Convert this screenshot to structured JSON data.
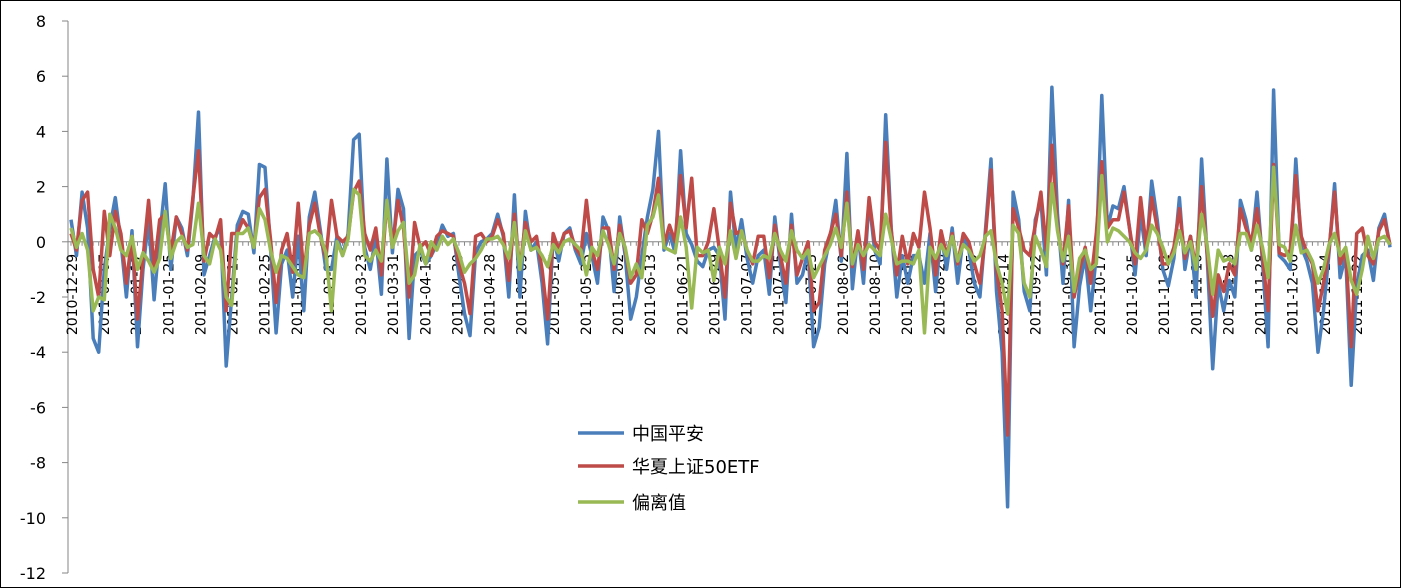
{
  "chart_data": {
    "type": "line",
    "ylim": [
      -12,
      8
    ],
    "yticks": [
      8,
      6,
      4,
      2,
      0,
      -2,
      -4,
      -6,
      -8,
      -10,
      -12
    ],
    "xtick_labels": [
      "2010-12-29",
      "2011-01-07",
      "2011-01-17",
      "2011-01-25",
      "2011-02-09",
      "2011-02-17",
      "2011-02-25",
      "2011-03-07",
      "2011-03-15",
      "2011-03-23",
      "2011-03-31",
      "2011-04-12",
      "2011-04-20",
      "2011-04-28",
      "2011-05-09",
      "2011-05-17",
      "2011-05-25",
      "2011-06-02",
      "2011-06-13",
      "2011-06-21",
      "2011-06-29",
      "2011-07-07",
      "2011-07-15",
      "2011-07-25",
      "2011-08-02",
      "2011-08-10",
      "2011-08-18",
      "2011-08-26",
      "2011-09-05",
      "2011-09-14",
      "2011-09-22",
      "2011-09-30",
      "2011-10-17",
      "2011-10-25",
      "2011-11-02",
      "2011-11-10",
      "2011-11-18",
      "2011-11-28",
      "2011-12-06",
      "2011-12-14",
      "2011-12-22"
    ],
    "legend_position": "center-bottom",
    "grid": false,
    "series": [
      {
        "name": "中国平安",
        "color": "#4a7ebb",
        "values": [
          0.8,
          -0.5,
          1.8,
          0.5,
          -3.5,
          -4.0,
          -1.0,
          0.5,
          1.6,
          0.0,
          -2.0,
          0.4,
          -3.8,
          -1.0,
          0.8,
          -2.1,
          0.2,
          2.1,
          -1.0,
          0.9,
          0.5,
          -0.5,
          1.5,
          4.7,
          -1.2,
          -0.5,
          0.2,
          0.5,
          -4.5,
          -2.0,
          0.6,
          1.1,
          1.0,
          -0.4,
          2.8,
          2.7,
          -0.2,
          -3.3,
          -0.8,
          -0.3,
          -2.0,
          0.2,
          -2.5,
          0.9,
          1.8,
          0.4,
          -1.0,
          -1.0,
          0.2,
          -0.5,
          0.3,
          3.7,
          3.9,
          -0.2,
          -1.0,
          0.2,
          -1.9,
          3.0,
          -0.4,
          1.9,
          1.2,
          -3.5,
          -0.5,
          -0.3,
          -0.8,
          -0.5,
          -0.1,
          0.6,
          0.2,
          0.3,
          -1.2,
          -2.6,
          -3.4,
          -0.4,
          0.0,
          0.1,
          0.3,
          1.0,
          0.2,
          -2.0,
          1.7,
          -2.0,
          1.1,
          -0.3,
          0.0,
          -1.5,
          -3.7,
          0.2,
          -0.7,
          0.3,
          0.5,
          -0.3,
          -0.8,
          0.3,
          -0.5,
          -1.5,
          0.9,
          0.4,
          -1.8,
          0.9,
          -0.5,
          -2.8,
          -2.0,
          -0.5,
          0.9,
          1.9,
          4.0,
          -0.3,
          0.3,
          -0.4,
          3.3,
          0.3,
          -0.1,
          -0.7,
          -0.9,
          -0.3,
          -0.2,
          -0.5,
          -2.8,
          1.8,
          -0.3,
          0.8,
          -0.6,
          -1.5,
          -0.5,
          -0.3,
          -1.9,
          0.9,
          -0.8,
          -2.2,
          1.0,
          -1.5,
          -1.2,
          -0.3,
          -3.8,
          -3.1,
          -0.8,
          0.2,
          1.5,
          -0.7,
          3.2,
          -1.7,
          0.3,
          -1.5,
          1.5,
          -0.3,
          -0.8,
          4.6,
          0.5,
          -2.0,
          -0.5,
          -1.5,
          -0.5,
          -0.5,
          -1.5,
          0.3,
          -1.8,
          0.3,
          -1.0,
          0.5,
          -1.5,
          0.2,
          -0.3,
          -1.5,
          -2.0,
          0.4,
          3.0,
          -1.8,
          -4.0,
          -9.6,
          1.8,
          0.8,
          -1.8,
          -2.5,
          0.8,
          1.5,
          -1.2,
          5.6,
          1.0,
          -1.5,
          1.5,
          -3.8,
          -1.6,
          -0.5,
          -2.5,
          -0.5,
          5.3,
          0.5,
          1.3,
          1.2,
          2.0,
          0.5,
          -1.2,
          1.0,
          -0.5,
          2.2,
          0.8,
          -1.0,
          -1.6,
          -0.6,
          1.6,
          -1.0,
          0.2,
          -2.0,
          3.0,
          -0.5,
          -4.6,
          -1.5,
          -2.5,
          -1.4,
          -2.0,
          1.5,
          0.8,
          -0.3,
          1.8,
          -0.7,
          -3.8,
          5.5,
          -0.5,
          -0.7,
          -1.0,
          3.0,
          -0.2,
          -0.7,
          -1.5,
          -4.0,
          -2.5,
          -0.4,
          2.1,
          -1.3,
          -0.5,
          -5.2,
          -1.6,
          -0.5,
          -0.3,
          -1.4,
          0.5,
          1.0,
          -0.2
        ]
      },
      {
        "name": "华夏上证50ETF",
        "color": "#be4b48",
        "values": [
          0.3,
          -0.3,
          1.5,
          1.8,
          -1.0,
          -2.0,
          1.1,
          -0.5,
          1.1,
          0.3,
          -1.5,
          0.2,
          -2.8,
          -0.6,
          1.5,
          -1.0,
          0.8,
          1.0,
          -0.4,
          0.9,
          0.3,
          -0.3,
          1.6,
          3.3,
          -0.7,
          0.3,
          0.1,
          0.8,
          -2.5,
          0.3,
          0.3,
          0.8,
          0.5,
          -0.2,
          1.6,
          1.9,
          0.1,
          -2.2,
          -0.3,
          0.3,
          -1.1,
          1.4,
          -1.2,
          0.6,
          1.4,
          0.2,
          -0.6,
          1.5,
          0.2,
          0.0,
          0.2,
          1.8,
          2.2,
          0.3,
          -0.3,
          0.5,
          -1.2,
          1.5,
          -0.2,
          1.5,
          0.5,
          -2.0,
          0.7,
          -0.2,
          0.0,
          -0.5,
          0.2,
          0.4,
          0.3,
          0.2,
          -0.8,
          -1.5,
          -2.6,
          0.2,
          0.3,
          0.0,
          0.2,
          0.8,
          0.3,
          -1.4,
          1.0,
          -1.0,
          0.7,
          0.0,
          0.2,
          -1.0,
          -2.8,
          0.3,
          -0.3,
          0.3,
          0.4,
          -0.2,
          -0.5,
          1.5,
          -0.3,
          -1.0,
          0.5,
          0.5,
          -1.0,
          0.6,
          -0.3,
          -1.5,
          -1.2,
          0.8,
          0.3,
          1.0,
          2.3,
          -0.1,
          0.6,
          0.0,
          2.4,
          0.5,
          2.3,
          -0.5,
          -0.5,
          0.0,
          1.2,
          -0.3,
          -2.0,
          1.4,
          0.3,
          0.4,
          -0.3,
          -0.8,
          0.2,
          0.2,
          -1.3,
          0.6,
          -0.5,
          -1.5,
          0.6,
          -1.2,
          -0.6,
          0.0,
          -2.5,
          -2.2,
          -0.3,
          0.3,
          1.0,
          -0.5,
          1.8,
          -0.9,
          0.4,
          -1.0,
          1.6,
          0.0,
          -0.3,
          3.6,
          0.4,
          -1.2,
          0.2,
          -0.8,
          0.3,
          -0.2,
          1.8,
          0.5,
          -1.2,
          0.4,
          -0.5,
          0.3,
          -0.8,
          0.3,
          0.0,
          -0.8,
          -1.5,
          0.2,
          2.6,
          -1.0,
          -2.5,
          -7.0,
          1.2,
          0.5,
          -0.3,
          -0.5,
          0.6,
          1.8,
          -0.3,
          3.5,
          0.6,
          -0.8,
          1.3,
          -2.0,
          -1.0,
          -0.2,
          -1.5,
          0.3,
          2.9,
          0.5,
          0.8,
          0.8,
          1.8,
          0.5,
          -0.8,
          1.6,
          -0.2,
          1.6,
          0.5,
          -0.8,
          -0.8,
          -0.2,
          1.2,
          -0.6,
          0.2,
          -1.0,
          2.0,
          -0.4,
          -2.7,
          -1.2,
          -1.8,
          -0.8,
          -1.2,
          1.2,
          0.5,
          0.0,
          1.2,
          -0.5,
          -2.5,
          2.8,
          -0.4,
          -0.5,
          -0.3,
          2.4,
          0.2,
          -0.4,
          -0.8,
          -2.5,
          -1.5,
          -0.3,
          1.8,
          -0.8,
          -0.3,
          -3.8,
          0.3,
          0.5,
          -0.5,
          -0.8,
          0.4,
          0.8,
          -0.1
        ]
      },
      {
        "name": "偏离值",
        "color": "#98b954",
        "values": [
          0.5,
          -0.2,
          0.3,
          -0.3,
          -2.5,
          -2.0,
          -2.1,
          1.0,
          0.5,
          -0.3,
          -0.5,
          0.2,
          -1.0,
          -0.4,
          -0.7,
          -1.1,
          -0.6,
          1.1,
          -0.6,
          0.0,
          0.2,
          -0.2,
          -0.1,
          1.4,
          -0.5,
          -0.8,
          0.1,
          -0.3,
          -2.0,
          -2.3,
          0.3,
          0.3,
          0.5,
          -0.2,
          1.2,
          0.8,
          -0.3,
          -1.1,
          -0.5,
          -0.6,
          -0.9,
          -1.2,
          -1.3,
          0.3,
          0.4,
          0.2,
          -0.4,
          -2.5,
          0.0,
          -0.5,
          0.1,
          1.9,
          1.7,
          -0.5,
          -0.7,
          -0.3,
          -0.7,
          1.5,
          -0.2,
          0.4,
          0.7,
          -1.5,
          -1.2,
          -0.1,
          -0.8,
          0.0,
          -0.3,
          0.2,
          -0.1,
          0.1,
          -0.4,
          -1.1,
          -0.8,
          -0.6,
          -0.3,
          0.1,
          0.1,
          0.2,
          -0.1,
          -0.6,
          0.7,
          -1.0,
          0.4,
          -0.3,
          -0.2,
          -0.5,
          -0.9,
          -0.1,
          -0.4,
          0.0,
          0.1,
          -0.1,
          -0.3,
          -1.2,
          -0.2,
          -0.5,
          0.4,
          -0.1,
          -0.8,
          0.3,
          -0.2,
          -1.3,
          -0.8,
          -1.3,
          0.6,
          0.9,
          1.7,
          -0.2,
          -0.3,
          -0.4,
          0.9,
          -0.2,
          -2.4,
          -0.2,
          -0.4,
          -0.3,
          -1.4,
          -0.2,
          -0.8,
          0.4,
          -0.6,
          0.4,
          -0.3,
          -0.7,
          -0.7,
          -0.5,
          -0.6,
          0.3,
          -0.3,
          -0.7,
          0.4,
          -0.3,
          -0.6,
          -0.3,
          -1.3,
          -0.9,
          -0.5,
          -0.1,
          0.5,
          -0.2,
          1.4,
          -0.8,
          -0.1,
          -0.5,
          -0.1,
          -0.3,
          -0.5,
          1.0,
          0.1,
          -0.8,
          -0.7,
          -0.7,
          -0.8,
          -0.3,
          -3.3,
          -0.2,
          -0.6,
          -0.1,
          -0.5,
          0.2,
          -0.7,
          -0.1,
          -0.3,
          -0.7,
          -0.5,
          0.2,
          0.4,
          -0.8,
          -1.5,
          -2.6,
          0.6,
          0.3,
          -1.5,
          -2.0,
          0.2,
          -0.3,
          -0.9,
          2.1,
          0.4,
          -0.7,
          0.2,
          -1.8,
          -0.6,
          -0.3,
          -1.0,
          -0.8,
          2.4,
          0.0,
          0.5,
          0.4,
          0.2,
          0.0,
          -0.4,
          -0.6,
          -0.3,
          0.6,
          0.3,
          -0.2,
          -0.8,
          -0.4,
          0.4,
          -0.4,
          0.0,
          -1.0,
          1.0,
          -0.1,
          -1.9,
          -0.3,
          -0.7,
          -0.6,
          -0.8,
          0.3,
          0.3,
          -0.3,
          0.6,
          -0.2,
          -1.3,
          2.7,
          -0.1,
          -0.2,
          -0.7,
          0.6,
          -0.4,
          -0.3,
          -0.7,
          -1.5,
          -1.0,
          -0.1,
          0.3,
          -0.5,
          -0.2,
          -1.4,
          -1.9,
          -1.0,
          0.2,
          -0.6,
          0.1,
          0.2,
          -0.1
        ]
      }
    ]
  }
}
